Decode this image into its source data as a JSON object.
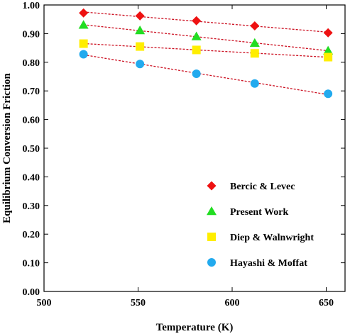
{
  "chart_data": {
    "type": "scatter",
    "title": "",
    "xlabel": "Temperature (K)",
    "ylabel": "Equilibrium Conversion Friction",
    "xlim": [
      500,
      660
    ],
    "ylim": [
      0,
      1.0
    ],
    "x_ticks": [
      "500",
      "550",
      "600",
      "650"
    ],
    "y_ticks": [
      "0.00",
      "0.10",
      "0.20",
      "0.30",
      "0.40",
      "0.50",
      "0.60",
      "0.70",
      "0.80",
      "0.90",
      "1.00"
    ],
    "grid": false,
    "legend_position": "bottom-right",
    "series": [
      {
        "name": "Bercic & Levec",
        "marker": "diamond",
        "color": "#ee1111",
        "x": [
          521,
          551,
          581,
          612,
          651
        ],
        "y": [
          0.972,
          0.962,
          0.945,
          0.927,
          0.903
        ]
      },
      {
        "name": "Present Work",
        "marker": "triangle",
        "color": "#22dd22",
        "x": [
          521,
          551,
          581,
          612,
          651
        ],
        "y": [
          0.93,
          0.911,
          0.89,
          0.867,
          0.84
        ]
      },
      {
        "name": "Diep & Walnwright",
        "marker": "square",
        "color": "#ffee00",
        "x": [
          521,
          551,
          581,
          612,
          651
        ],
        "y": [
          0.865,
          0.855,
          0.843,
          0.831,
          0.818
        ]
      },
      {
        "name": "Hayashi & Moffat",
        "marker": "circle",
        "color": "#22aaee",
        "x": [
          521,
          551,
          581,
          612,
          651
        ],
        "y": [
          0.828,
          0.794,
          0.76,
          0.726,
          0.69
        ]
      }
    ]
  }
}
